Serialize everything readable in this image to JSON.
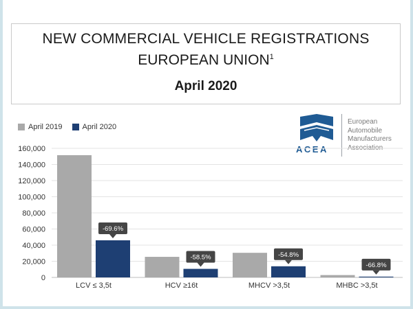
{
  "title": {
    "line1": "NEW COMMERCIAL VEHICLE REGISTRATIONS",
    "line2": "EUROPEAN UNION",
    "line2_sup": "1",
    "date": "April 2020"
  },
  "logo": {
    "letters": "ACEA",
    "text_lines": [
      "European",
      "Automobile",
      "Manufacturers",
      "Association"
    ],
    "color": "#1f5b94"
  },
  "colors": {
    "april2019": "#a9a9a9",
    "april2020": "#1e3f73",
    "callout": "#454545",
    "grid": "#e3e3e3"
  },
  "chart_data": {
    "type": "bar",
    "categories": [
      "LCV ≤ 3,5t",
      "HCV ≥16t",
      "MHCV >3,5t",
      "MHBC >3,5t"
    ],
    "series": [
      {
        "name": "April 2019",
        "values": [
          151500,
          25500,
          30500,
          2900
        ]
      },
      {
        "name": "April 2020",
        "values": [
          46000,
          10600,
          13800,
          960
        ]
      }
    ],
    "annotations": [
      "-69.6%",
      "-58.5%",
      "-54.8%",
      "-66.8%"
    ],
    "yticks": [
      "0",
      "20,000",
      "40,000",
      "60,000",
      "80,000",
      "100,000",
      "120,000",
      "140,000",
      "160,000"
    ],
    "ylim": [
      0,
      160000
    ],
    "grid": true,
    "legend": "top-left"
  }
}
